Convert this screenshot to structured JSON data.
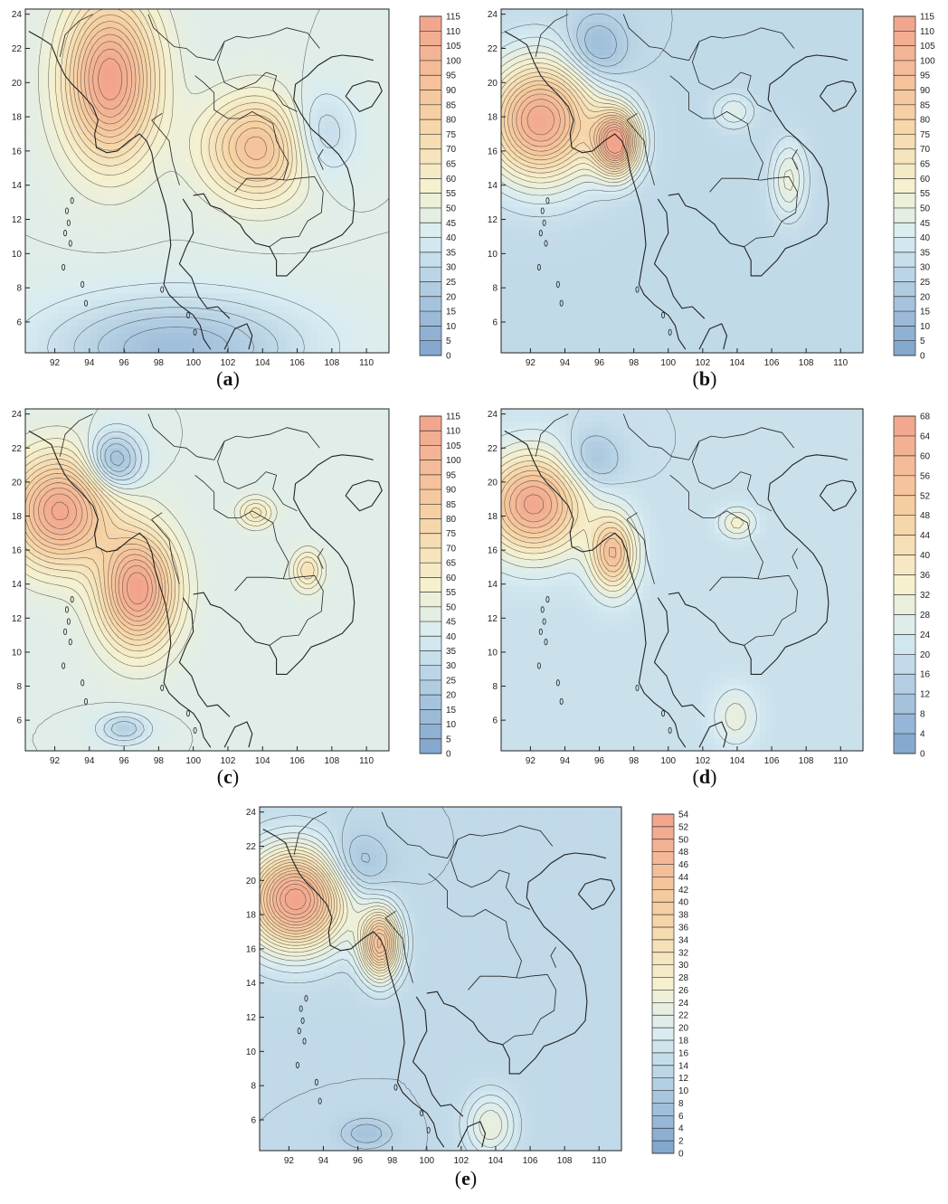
{
  "figure": {
    "colors": {
      "low": "#7ea4cc",
      "mid_low": "#d8ecf2",
      "mid": "#f5f1cf",
      "mid_high": "#f6d3a4",
      "high": "#f2a38c",
      "contour": "#333333",
      "coast": "#222222"
    },
    "lon_ticks": [
      "92",
      "94",
      "96",
      "98",
      "100",
      "102",
      "104",
      "106",
      "108",
      "110"
    ],
    "lat_ticks": [
      "6",
      "8",
      "10",
      "12",
      "14",
      "16",
      "18",
      "20",
      "22",
      "24"
    ],
    "panels": [
      {
        "label": "a",
        "colorbar_ticks": [
          "115",
          "110",
          "105",
          "100",
          "95",
          "90",
          "85",
          "80",
          "75",
          "70",
          "65",
          "60",
          "55",
          "50",
          "45",
          "40",
          "35",
          "30",
          "25",
          "20",
          "15",
          "10",
          "5",
          "0"
        ],
        "vmax": 115,
        "centers": [
          {
            "lon": 95.2,
            "lat": 20.2,
            "value": 115,
            "sx": 1.8,
            "sy": 3.2
          },
          {
            "lon": 103.9,
            "lat": 16.2,
            "value": 95,
            "sx": 2.2,
            "sy": 2.0
          },
          {
            "lon": 107.0,
            "lat": 16.8,
            "value": 20,
            "sx": 1.5,
            "sy": 1.8
          },
          {
            "lon": 99.0,
            "lat": 4.5,
            "value": 15,
            "sx": 5,
            "sy": 2
          }
        ],
        "background": 45
      },
      {
        "label": "b",
        "colorbar_ticks": [
          "115",
          "110",
          "105",
          "100",
          "95",
          "90",
          "85",
          "80",
          "75",
          "70",
          "65",
          "60",
          "55",
          "50",
          "45",
          "40",
          "35",
          "30",
          "25",
          "20",
          "15",
          "10",
          "5",
          "0"
        ],
        "vmax": 115,
        "centers": [
          {
            "lon": 92.6,
            "lat": 17.8,
            "value": 110,
            "sx": 2.2,
            "sy": 2.4
          },
          {
            "lon": 97.0,
            "lat": 16.5,
            "value": 112,
            "sx": 0.9,
            "sy": 1.3
          },
          {
            "lon": 95.8,
            "lat": 22.0,
            "value": 10,
            "sx": 1.2,
            "sy": 1.3
          },
          {
            "lon": 107.0,
            "lat": 14.3,
            "value": 52,
            "sx": 0.7,
            "sy": 1.5
          },
          {
            "lon": 103.8,
            "lat": 18.3,
            "value": 45,
            "sx": 0.8,
            "sy": 0.7
          }
        ],
        "background": 30
      },
      {
        "label": "c",
        "colorbar_ticks": [
          "115",
          "110",
          "105",
          "100",
          "95",
          "90",
          "85",
          "80",
          "75",
          "70",
          "65",
          "60",
          "55",
          "50",
          "45",
          "40",
          "35",
          "30",
          "25",
          "20",
          "15",
          "10",
          "5",
          "0"
        ],
        "vmax": 115,
        "centers": [
          {
            "lon": 92.3,
            "lat": 18.3,
            "value": 112,
            "sx": 2.0,
            "sy": 2.2
          },
          {
            "lon": 96.8,
            "lat": 13.7,
            "value": 115,
            "sx": 1.5,
            "sy": 2.3
          },
          {
            "lon": 95.4,
            "lat": 21.2,
            "value": 10,
            "sx": 1.1,
            "sy": 1.2
          },
          {
            "lon": 106.6,
            "lat": 14.8,
            "value": 70,
            "sx": 0.6,
            "sy": 0.8
          },
          {
            "lon": 103.6,
            "lat": 18.2,
            "value": 68,
            "sx": 0.7,
            "sy": 0.6
          },
          {
            "lon": 96.0,
            "lat": 5.5,
            "value": 25,
            "sx": 1.0,
            "sy": 0.6
          }
        ],
        "background": 45
      },
      {
        "label": "d",
        "colorbar_ticks": [
          "68",
          "64",
          "60",
          "56",
          "52",
          "48",
          "44",
          "40",
          "36",
          "32",
          "28",
          "24",
          "20",
          "16",
          "12",
          "8",
          "4",
          "0"
        ],
        "vmax": 68,
        "centers": [
          {
            "lon": 92.2,
            "lat": 18.7,
            "value": 66,
            "sx": 2.0,
            "sy": 2.0
          },
          {
            "lon": 96.8,
            "lat": 15.8,
            "value": 56,
            "sx": 0.9,
            "sy": 1.5
          },
          {
            "lon": 95.5,
            "lat": 21.2,
            "value": 8,
            "sx": 1.2,
            "sy": 1.2
          },
          {
            "lon": 103.9,
            "lat": 6.2,
            "value": 30,
            "sx": 0.9,
            "sy": 1.2
          },
          {
            "lon": 104.0,
            "lat": 17.6,
            "value": 34,
            "sx": 0.7,
            "sy": 0.6
          }
        ],
        "background": 20
      },
      {
        "label": "e",
        "colorbar_ticks": [
          "54",
          "52",
          "50",
          "48",
          "46",
          "44",
          "42",
          "40",
          "38",
          "36",
          "34",
          "32",
          "30",
          "28",
          "26",
          "24",
          "22",
          "20",
          "18",
          "16",
          "14",
          "12",
          "10",
          "8",
          "6",
          "4",
          "2",
          "0"
        ],
        "vmax": 54,
        "centers": [
          {
            "lon": 92.4,
            "lat": 18.9,
            "value": 54,
            "sx": 2.0,
            "sy": 2.0
          },
          {
            "lon": 97.3,
            "lat": 16.3,
            "value": 44,
            "sx": 0.8,
            "sy": 1.4
          },
          {
            "lon": 95.8,
            "lat": 20.9,
            "value": 6,
            "sx": 1.3,
            "sy": 1.3
          },
          {
            "lon": 103.7,
            "lat": 5.7,
            "value": 24,
            "sx": 1.0,
            "sy": 1.3
          },
          {
            "lon": 96.5,
            "lat": 5.2,
            "value": 8,
            "sx": 1.0,
            "sy": 0.6
          }
        ],
        "background": 14
      }
    ]
  }
}
